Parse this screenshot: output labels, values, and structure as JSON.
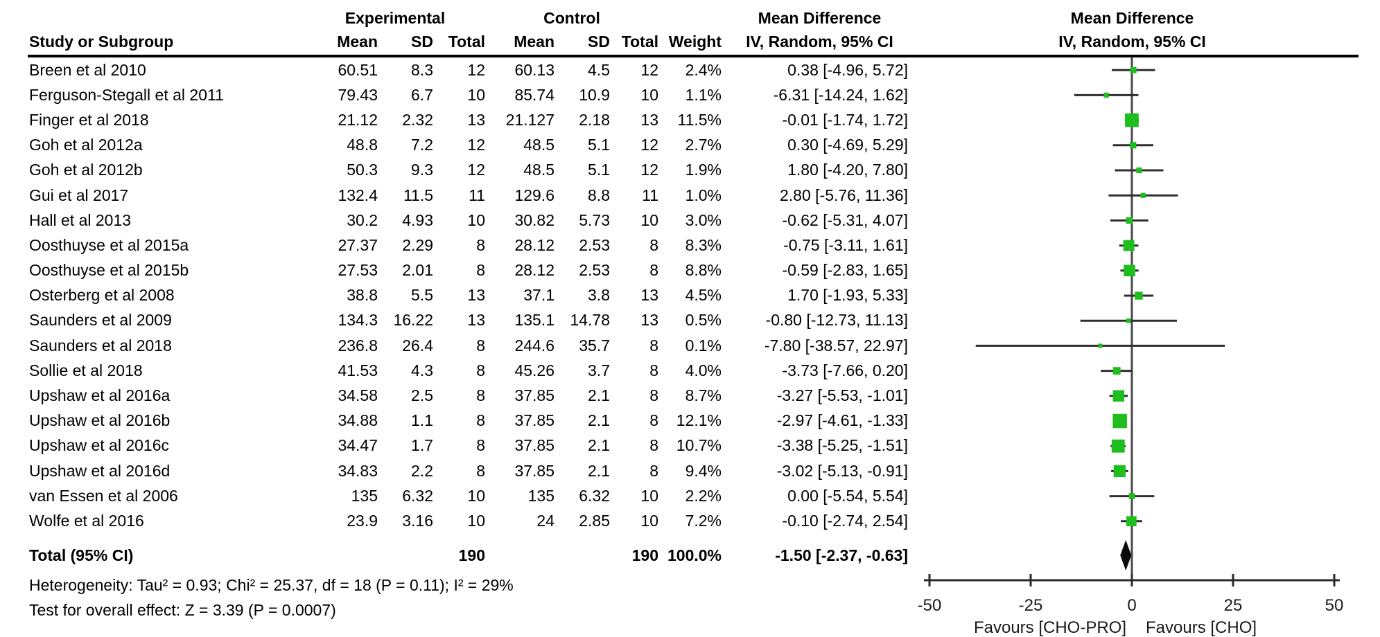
{
  "header": {
    "group_experimental": "Experimental",
    "group_control": "Control",
    "col_study": "Study or Subgroup",
    "col_mean": "Mean",
    "col_sd": "SD",
    "col_total": "Total",
    "col_weight": "Weight",
    "md_label": "Mean Difference",
    "method_label": "IV, Random, 95% CI"
  },
  "chart_data": {
    "type": "forest",
    "effect_measure": "Mean Difference, IV, Random, 95% CI",
    "marker_color": "#1dbe1d",
    "line_color": "#2e2e2e",
    "x_axis": {
      "min": -50,
      "max": 50,
      "ticks": [
        "-50",
        "-25",
        "0",
        "25",
        "50"
      ],
      "tick_values": [
        -50,
        -25,
        0,
        25,
        50
      ],
      "label_left": "Favours [CHO-PRO]",
      "label_right": "Favours [CHO]"
    },
    "studies": [
      {
        "name": "Breen et al 2010",
        "exp_mean": "60.51",
        "exp_sd": "8.3",
        "exp_total": "12",
        "ctrl_mean": "60.13",
        "ctrl_sd": "4.5",
        "ctrl_total": "12",
        "weight": "2.4%",
        "ci_text": "0.38 [-4.96, 5.72]",
        "est": 0.38,
        "lo": -4.96,
        "hi": 5.72
      },
      {
        "name": "Ferguson-Stegall et al 2011",
        "exp_mean": "79.43",
        "exp_sd": "6.7",
        "exp_total": "10",
        "ctrl_mean": "85.74",
        "ctrl_sd": "10.9",
        "ctrl_total": "10",
        "weight": "1.1%",
        "ci_text": "-6.31 [-14.24, 1.62]",
        "est": -6.31,
        "lo": -14.24,
        "hi": 1.62
      },
      {
        "name": "Finger et al 2018",
        "exp_mean": "21.12",
        "exp_sd": "2.32",
        "exp_total": "13",
        "ctrl_mean": "21.127",
        "ctrl_sd": "2.18",
        "ctrl_total": "13",
        "weight": "11.5%",
        "ci_text": "-0.01 [-1.74, 1.72]",
        "est": -0.01,
        "lo": -1.74,
        "hi": 1.72
      },
      {
        "name": "Goh et al 2012a",
        "exp_mean": "48.8",
        "exp_sd": "7.2",
        "exp_total": "12",
        "ctrl_mean": "48.5",
        "ctrl_sd": "5.1",
        "ctrl_total": "12",
        "weight": "2.7%",
        "ci_text": "0.30 [-4.69, 5.29]",
        "est": 0.3,
        "lo": -4.69,
        "hi": 5.29
      },
      {
        "name": "Goh et al 2012b",
        "exp_mean": "50.3",
        "exp_sd": "9.3",
        "exp_total": "12",
        "ctrl_mean": "48.5",
        "ctrl_sd": "5.1",
        "ctrl_total": "12",
        "weight": "1.9%",
        "ci_text": "1.80 [-4.20, 7.80]",
        "est": 1.8,
        "lo": -4.2,
        "hi": 7.8
      },
      {
        "name": "Gui et al 2017",
        "exp_mean": "132.4",
        "exp_sd": "11.5",
        "exp_total": "11",
        "ctrl_mean": "129.6",
        "ctrl_sd": "8.8",
        "ctrl_total": "11",
        "weight": "1.0%",
        "ci_text": "2.80 [-5.76, 11.36]",
        "est": 2.8,
        "lo": -5.76,
        "hi": 11.36
      },
      {
        "name": "Hall et al 2013",
        "exp_mean": "30.2",
        "exp_sd": "4.93",
        "exp_total": "10",
        "ctrl_mean": "30.82",
        "ctrl_sd": "5.73",
        "ctrl_total": "10",
        "weight": "3.0%",
        "ci_text": "-0.62 [-5.31, 4.07]",
        "est": -0.62,
        "lo": -5.31,
        "hi": 4.07
      },
      {
        "name": "Oosthuyse et al 2015a",
        "exp_mean": "27.37",
        "exp_sd": "2.29",
        "exp_total": "8",
        "ctrl_mean": "28.12",
        "ctrl_sd": "2.53",
        "ctrl_total": "8",
        "weight": "8.3%",
        "ci_text": "-0.75 [-3.11, 1.61]",
        "est": -0.75,
        "lo": -3.11,
        "hi": 1.61
      },
      {
        "name": "Oosthuyse et al 2015b",
        "exp_mean": "27.53",
        "exp_sd": "2.01",
        "exp_total": "8",
        "ctrl_mean": "28.12",
        "ctrl_sd": "2.53",
        "ctrl_total": "8",
        "weight": "8.8%",
        "ci_text": "-0.59 [-2.83, 1.65]",
        "est": -0.59,
        "lo": -2.83,
        "hi": 1.65
      },
      {
        "name": "Osterberg et al 2008",
        "exp_mean": "38.8",
        "exp_sd": "5.5",
        "exp_total": "13",
        "ctrl_mean": "37.1",
        "ctrl_sd": "3.8",
        "ctrl_total": "13",
        "weight": "4.5%",
        "ci_text": "1.70 [-1.93, 5.33]",
        "est": 1.7,
        "lo": -1.93,
        "hi": 5.33
      },
      {
        "name": "Saunders et al 2009",
        "exp_mean": "134.3",
        "exp_sd": "16.22",
        "exp_total": "13",
        "ctrl_mean": "135.1",
        "ctrl_sd": "14.78",
        "ctrl_total": "13",
        "weight": "0.5%",
        "ci_text": "-0.80 [-12.73, 11.13]",
        "est": -0.8,
        "lo": -12.73,
        "hi": 11.13
      },
      {
        "name": "Saunders et al 2018",
        "exp_mean": "236.8",
        "exp_sd": "26.4",
        "exp_total": "8",
        "ctrl_mean": "244.6",
        "ctrl_sd": "35.7",
        "ctrl_total": "8",
        "weight": "0.1%",
        "ci_text": "-7.80 [-38.57, 22.97]",
        "est": -7.8,
        "lo": -38.57,
        "hi": 22.97
      },
      {
        "name": "Sollie et al 2018",
        "exp_mean": "41.53",
        "exp_sd": "4.3",
        "exp_total": "8",
        "ctrl_mean": "45.26",
        "ctrl_sd": "3.7",
        "ctrl_total": "8",
        "weight": "4.0%",
        "ci_text": "-3.73 [-7.66, 0.20]",
        "est": -3.73,
        "lo": -7.66,
        "hi": 0.2
      },
      {
        "name": "Upshaw et al 2016a",
        "exp_mean": "34.58",
        "exp_sd": "2.5",
        "exp_total": "8",
        "ctrl_mean": "37.85",
        "ctrl_sd": "2.1",
        "ctrl_total": "8",
        "weight": "8.7%",
        "ci_text": "-3.27 [-5.53, -1.01]",
        "est": -3.27,
        "lo": -5.53,
        "hi": -1.01
      },
      {
        "name": "Upshaw et al 2016b",
        "exp_mean": "34.88",
        "exp_sd": "1.1",
        "exp_total": "8",
        "ctrl_mean": "37.85",
        "ctrl_sd": "2.1",
        "ctrl_total": "8",
        "weight": "12.1%",
        "ci_text": "-2.97 [-4.61, -1.33]",
        "est": -2.97,
        "lo": -4.61,
        "hi": -1.33
      },
      {
        "name": "Upshaw et al 2016c",
        "exp_mean": "34.47",
        "exp_sd": "1.7",
        "exp_total": "8",
        "ctrl_mean": "37.85",
        "ctrl_sd": "2.1",
        "ctrl_total": "8",
        "weight": "10.7%",
        "ci_text": "-3.38 [-5.25, -1.51]",
        "est": -3.38,
        "lo": -5.25,
        "hi": -1.51
      },
      {
        "name": "Upshaw et al 2016d",
        "exp_mean": "34.83",
        "exp_sd": "2.2",
        "exp_total": "8",
        "ctrl_mean": "37.85",
        "ctrl_sd": "2.1",
        "ctrl_total": "8",
        "weight": "9.4%",
        "ci_text": "-3.02 [-5.13, -0.91]",
        "est": -3.02,
        "lo": -5.13,
        "hi": -0.91
      },
      {
        "name": "van Essen et al 2006",
        "exp_mean": "135",
        "exp_sd": "6.32",
        "exp_total": "10",
        "ctrl_mean": "135",
        "ctrl_sd": "6.32",
        "ctrl_total": "10",
        "weight": "2.2%",
        "ci_text": "0.00 [-5.54, 5.54]",
        "est": 0.0,
        "lo": -5.54,
        "hi": 5.54
      },
      {
        "name": "Wolfe et al 2016",
        "exp_mean": "23.9",
        "exp_sd": "3.16",
        "exp_total": "10",
        "ctrl_mean": "24",
        "ctrl_sd": "2.85",
        "ctrl_total": "10",
        "weight": "7.2%",
        "ci_text": "-0.10 [-2.74, 2.54]",
        "est": -0.1,
        "lo": -2.74,
        "hi": 2.54
      }
    ],
    "total": {
      "label": "Total (95% CI)",
      "exp_total": "190",
      "ctrl_total": "190",
      "weight": "100.0%",
      "ci_text": "-1.50 [-2.37, -0.63]",
      "est": -1.5,
      "lo": -2.37,
      "hi": -0.63
    },
    "heterogeneity": "Heterogeneity: Tau² = 0.93; Chi² = 25.37, df = 18 (P = 0.11); I² = 29%",
    "overall_effect": "Test for overall effect: Z = 3.39 (P = 0.0007)"
  }
}
